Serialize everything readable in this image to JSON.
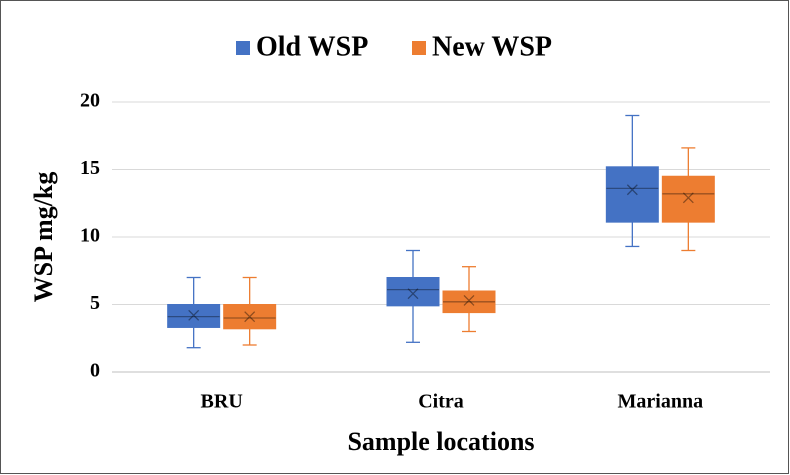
{
  "chart_data": {
    "type": "box",
    "x_label": "Sample locations",
    "y_label": "WSP mg/kg",
    "categories": [
      "BRU",
      "Citra",
      "Marianna"
    ],
    "series": [
      {
        "name": "Old WSP",
        "color": "#4472c4",
        "min": [
          1.8,
          2.2,
          9.3
        ],
        "q1": [
          3.3,
          4.9,
          11.1
        ],
        "median": [
          4.1,
          6.1,
          13.6
        ],
        "q3": [
          5.0,
          7.0,
          15.2
        ],
        "max": [
          7.0,
          9.0,
          19.0
        ],
        "mean": [
          4.2,
          5.8,
          13.5
        ]
      },
      {
        "name": "New WSP",
        "color": "#ed7d31",
        "min": [
          2.0,
          3.0,
          9.0
        ],
        "q1": [
          3.2,
          4.4,
          11.1
        ],
        "median": [
          4.0,
          5.2,
          13.2
        ],
        "q3": [
          5.0,
          6.0,
          14.5
        ],
        "max": [
          7.0,
          7.8,
          16.6
        ],
        "mean": [
          4.1,
          5.3,
          12.9
        ]
      }
    ],
    "ylim": [
      0,
      20
    ],
    "yticks": [
      0,
      5,
      10,
      15,
      20
    ],
    "grid": true,
    "legend": "top"
  }
}
